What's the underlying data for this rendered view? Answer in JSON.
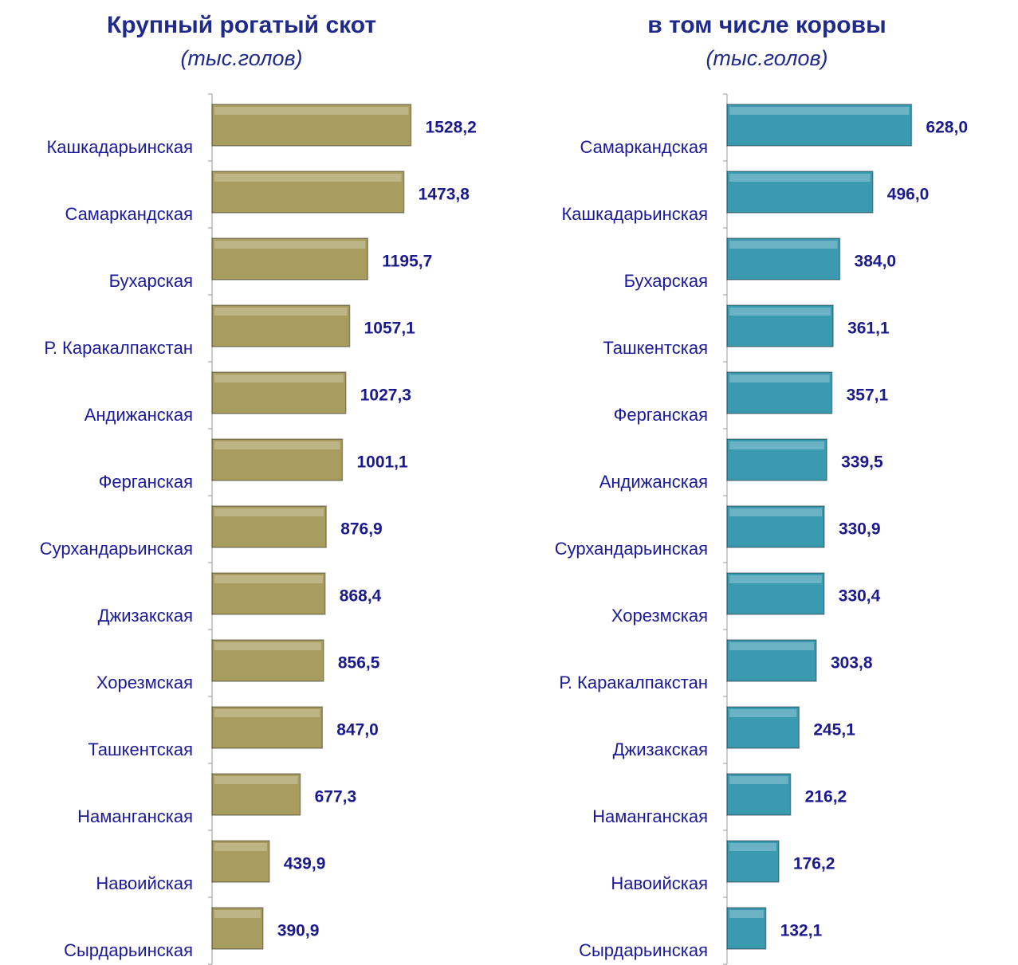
{
  "chart_data": [
    {
      "type": "bar",
      "orientation": "horizontal",
      "title": "Крупный рогатый скот",
      "subtitle": "(тыс.голов)",
      "categories": [
        "Кашкадарьинская",
        "Самаркандская",
        "Бухарская",
        "Р. Каракалпакстан",
        "Андижанская",
        "Ферганская",
        "Сурхандарьинская",
        "Джизакская",
        "Хорезмская",
        "Ташкентская",
        "Наманганская",
        "Навоийская",
        "Сырдарьинская"
      ],
      "values": [
        1528.2,
        1473.8,
        1195.7,
        1057.1,
        1027.3,
        1001.1,
        876.9,
        868.4,
        856.5,
        847.0,
        677.3,
        439.9,
        390.9
      ],
      "value_labels": [
        "1528,2",
        "1473,8",
        "1195,7",
        "1057,1",
        "1027,3",
        "1001,1",
        "876,9",
        "868,4",
        "856,5",
        "847,0",
        "677,3",
        "439,9",
        "390,9"
      ],
      "color": "#a89d5e",
      "xlim": [
        0,
        1580
      ]
    },
    {
      "type": "bar",
      "orientation": "horizontal",
      "title": "в том числе коровы",
      "subtitle": "(тыс.голов)",
      "categories": [
        "Самаркандская",
        "Кашкадарьинская",
        "Бухарская",
        "Ташкентская",
        "Ферганская",
        "Андижанская",
        "Сурхандарьинская",
        "Хорезмская",
        "Р. Каракалпакстан",
        "Джизакская",
        "Наманганская",
        "Навоийская",
        "Сырдарьинская"
      ],
      "values": [
        628.0,
        496.0,
        384.0,
        361.1,
        357.1,
        339.5,
        330.9,
        330.4,
        303.8,
        245.1,
        216.2,
        176.2,
        132.1
      ],
      "value_labels": [
        "628,0",
        "496,0",
        "384,0",
        "361,1",
        "357,1",
        "339,5",
        "330,9",
        "330,4",
        "303,8",
        "245,1",
        "216,2",
        "176,2",
        "132,1"
      ],
      "color": "#3a9ab0",
      "xlim": [
        0,
        700
      ]
    }
  ]
}
